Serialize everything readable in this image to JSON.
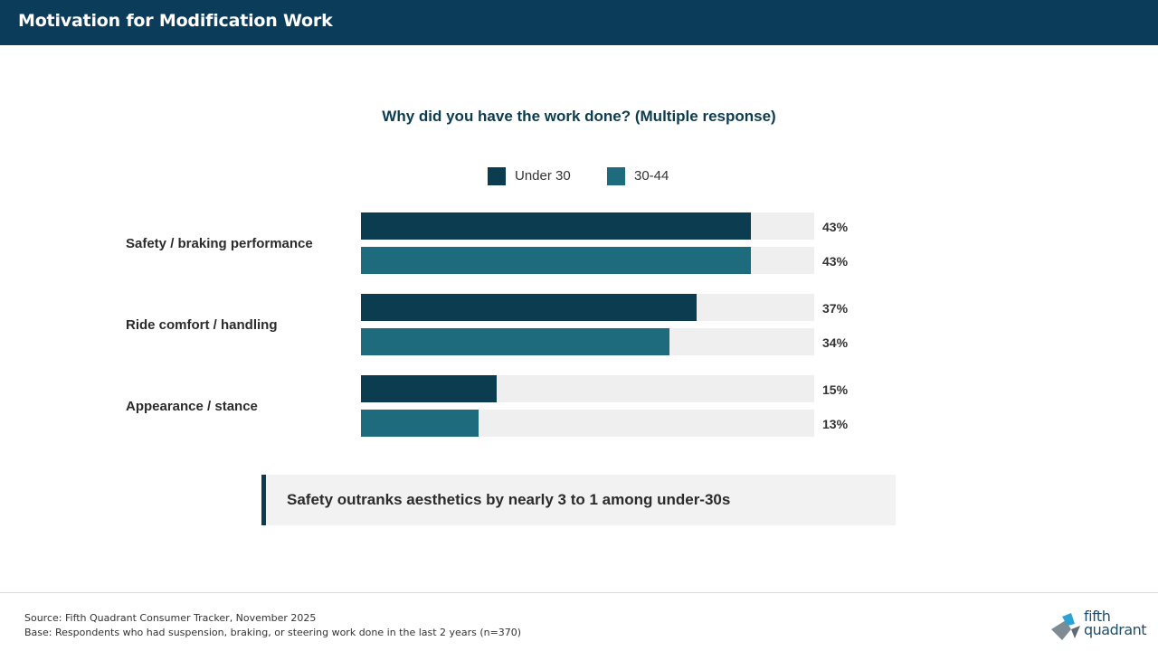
{
  "header": {
    "title": "Motivation for Modification Work"
  },
  "colors": {
    "header_bg": "#0b3c5a",
    "under30": "#0b3c4f",
    "age30_44": "#1d6b7c",
    "track": "#efefef"
  },
  "chart_data": {
    "type": "bar",
    "orientation": "horizontal",
    "title": "Why did you have the work done? (Multiple response)",
    "categories": [
      "Safety / braking performance",
      "Ride comfort / handling",
      "Appearance / stance"
    ],
    "series": [
      {
        "name": "Under 30",
        "values": [
          43,
          37,
          15
        ],
        "labels": [
          "43%",
          "37%",
          "15%"
        ]
      },
      {
        "name": "30-44",
        "values": [
          43,
          34,
          13
        ],
        "labels": [
          "43%",
          "34%",
          "13%"
        ]
      }
    ],
    "xlim": [
      0,
      50
    ],
    "unit": "%",
    "legend_position": "top"
  },
  "callout": {
    "text": "Safety outranks aesthetics by nearly 3 to 1 among under-30s"
  },
  "footer": {
    "source": "Source: Fifth Quadrant Consumer Tracker, November 2025",
    "base": "Base: Respondents who had suspension, braking, or steering work done in the last 2 years (n=370)"
  },
  "logo": {
    "line1": "fifth",
    "line2": "quadrant"
  }
}
